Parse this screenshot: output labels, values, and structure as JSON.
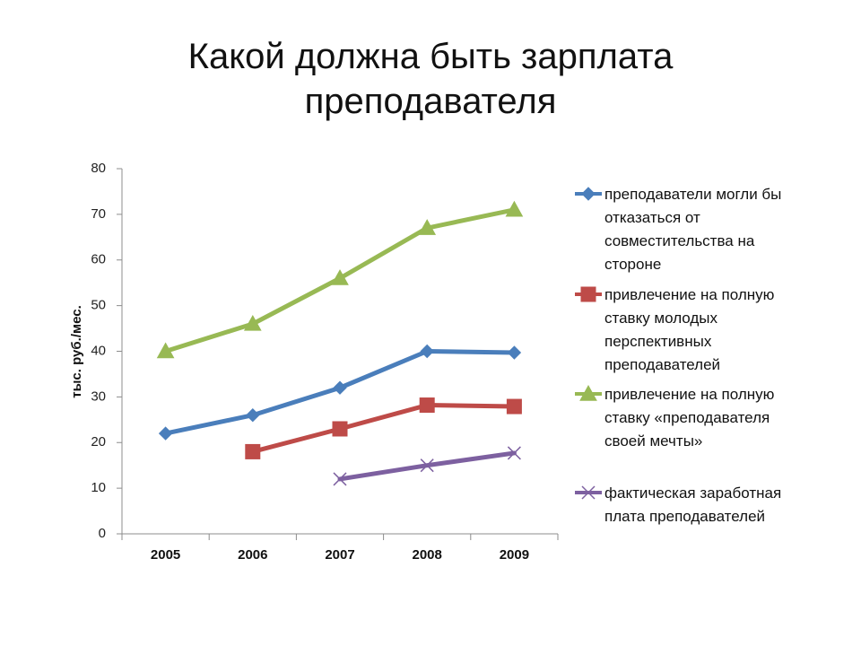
{
  "chart_data": {
    "type": "line",
    "title_lines": [
      "Какой должна быть зарплата",
      "преподавателя"
    ],
    "xlabel": "",
    "ylabel": "тыс. руб./мес.",
    "categories": [
      "2005",
      "2006",
      "2007",
      "2008",
      "2009"
    ],
    "ylim": [
      0,
      80
    ],
    "yticks": [
      "0",
      "10",
      "20",
      "30",
      "40",
      "50",
      "60",
      "70",
      "80"
    ],
    "grid": false,
    "legend_position": "right",
    "series": [
      {
        "name": "преподаватели могли бы отказаться от совместительства на стороне",
        "name_lines": [
          "преподаватели могли бы",
          "отказаться от",
          "совместительства на",
          "стороне"
        ],
        "values": [
          22,
          26,
          32,
          40,
          39.7
        ],
        "color": "#4a7ebb",
        "marker": "diamond"
      },
      {
        "name": "привлечение на полную ставку молодых перспективных преподавателей",
        "name_lines": [
          "привлечение на полную",
          "ставку молодых",
          "перспективных",
          "преподавателей"
        ],
        "values": [
          null,
          18,
          23,
          28.2,
          27.9
        ],
        "color": "#be4b48",
        "marker": "square"
      },
      {
        "name": "привлечение на полную ставку «преподавателя своей мечты»",
        "name_lines": [
          "привлечение на полную",
          "ставку «преподавателя",
          "своей мечты»"
        ],
        "values": [
          40,
          46,
          56,
          67,
          71
        ],
        "color": "#98b954",
        "marker": "triangle"
      },
      {
        "name": "фактическая заработная плата преподавателей",
        "name_lines": [
          "фактическая заработная",
          "плата преподавателей"
        ],
        "values": [
          null,
          null,
          12,
          15,
          17.7
        ],
        "color": "#7d60a0",
        "marker": "x"
      }
    ]
  }
}
